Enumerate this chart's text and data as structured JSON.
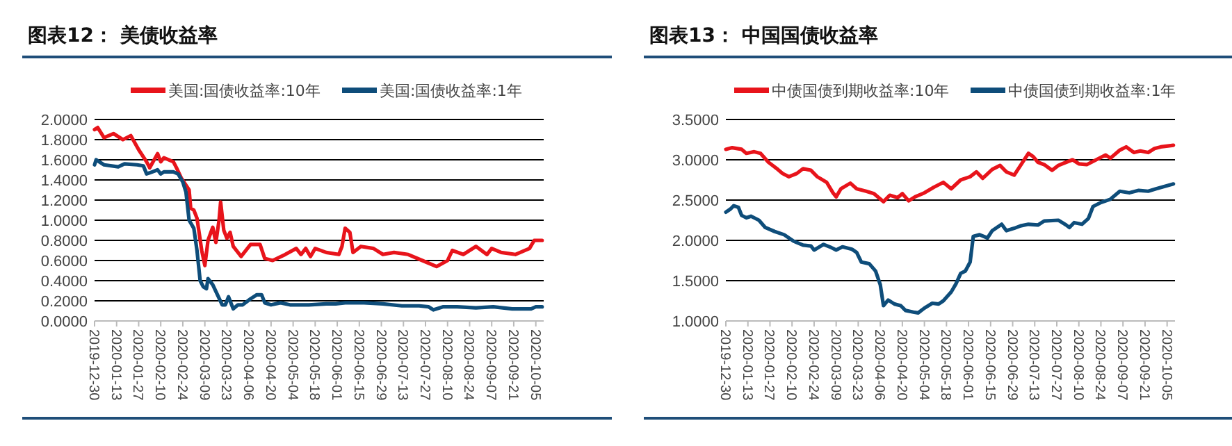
{
  "chart_data": [
    {
      "type": "line",
      "title": "图表12：  美债收益率",
      "legend": "top",
      "grid": "y",
      "xlim": [
        "2019-12-30",
        "2020-10-10"
      ],
      "xticks": [
        "2019-12-30",
        "2020-01-13",
        "2020-01-27",
        "2020-02-10",
        "2020-02-24",
        "2020-03-09",
        "2020-03-23",
        "2020-04-06",
        "2020-04-20",
        "2020-05-04",
        "2020-05-18",
        "2020-06-01",
        "2020-06-15",
        "2020-06-29",
        "2020-07-13",
        "2020-07-27",
        "2020-08-10",
        "2020-08-24",
        "2020-09-07",
        "2020-09-21",
        "2020-10-05"
      ],
      "ylim": [
        0,
        2
      ],
      "yticks": [
        {
          "value": 0,
          "label": "0.0000"
        },
        {
          "value": 0.2,
          "label": "0.2000"
        },
        {
          "value": 0.4,
          "label": "0.4000"
        },
        {
          "value": 0.6,
          "label": "0.6000"
        },
        {
          "value": 0.8,
          "label": "0.8000"
        },
        {
          "value": 1,
          "label": "1.0000"
        },
        {
          "value": 1.2,
          "label": "1.2000"
        },
        {
          "value": 1.4,
          "label": "1.4000"
        },
        {
          "value": 1.6,
          "label": "1.6000"
        },
        {
          "value": 1.8,
          "label": "1.8000"
        },
        {
          "value": 2,
          "label": "2.0000"
        }
      ],
      "series": [
        {
          "name": "美国:国债收益率:10年",
          "color": "#e8141b",
          "x": [
            "2019-12-30",
            "2020-01-01",
            "2020-01-05",
            "2020-01-11",
            "2020-01-17",
            "2020-01-22",
            "2020-01-27",
            "2020-02-01",
            "2020-02-03",
            "2020-02-08",
            "2020-02-10",
            "2020-02-12",
            "2020-02-18",
            "2020-02-20",
            "2020-02-23",
            "2020-02-28",
            "2020-02-29",
            "2020-03-02",
            "2020-03-04",
            "2020-03-07",
            "2020-03-09",
            "2020-03-11",
            "2020-03-14",
            "2020-03-16",
            "2020-03-18",
            "2020-03-19",
            "2020-03-21",
            "2020-03-23",
            "2020-03-25",
            "2020-03-27",
            "2020-04-01",
            "2020-04-07",
            "2020-04-13",
            "2020-04-16",
            "2020-04-21",
            "2020-04-29",
            "2020-05-06",
            "2020-05-09",
            "2020-05-12",
            "2020-05-15",
            "2020-05-18",
            "2020-05-25",
            "2020-06-02",
            "2020-06-04",
            "2020-06-06",
            "2020-06-09",
            "2020-06-11",
            "2020-06-16",
            "2020-06-24",
            "2020-06-30",
            "2020-07-07",
            "2020-07-16",
            "2020-07-25",
            "2020-08-03",
            "2020-08-10",
            "2020-08-13",
            "2020-08-20",
            "2020-08-28",
            "2020-09-04",
            "2020-09-07",
            "2020-09-13",
            "2020-09-22",
            "2020-10-01",
            "2020-10-04",
            "2020-10-09"
          ],
          "values": [
            1.9,
            1.92,
            1.82,
            1.86,
            1.8,
            1.84,
            1.7,
            1.58,
            1.52,
            1.66,
            1.58,
            1.62,
            1.58,
            1.52,
            1.42,
            1.3,
            1.12,
            1.1,
            1.02,
            0.7,
            0.55,
            0.8,
            0.93,
            0.78,
            1.0,
            1.18,
            0.9,
            0.82,
            0.88,
            0.74,
            0.64,
            0.76,
            0.76,
            0.62,
            0.6,
            0.66,
            0.72,
            0.66,
            0.72,
            0.64,
            0.72,
            0.68,
            0.66,
            0.74,
            0.92,
            0.88,
            0.68,
            0.74,
            0.72,
            0.66,
            0.68,
            0.66,
            0.6,
            0.54,
            0.6,
            0.7,
            0.66,
            0.74,
            0.66,
            0.72,
            0.68,
            0.66,
            0.72,
            0.8,
            0.8
          ]
        },
        {
          "name": "美国:国债收益率:1年",
          "color": "#0e4d7a",
          "x": [
            "2019-12-30",
            "2019-12-31",
            "2020-01-05",
            "2020-01-14",
            "2020-01-18",
            "2020-01-26",
            "2020-01-30",
            "2020-02-01",
            "2020-02-03",
            "2020-02-08",
            "2020-02-10",
            "2020-02-12",
            "2020-02-18",
            "2020-02-21",
            "2020-02-24",
            "2020-02-26",
            "2020-02-28",
            "2020-03-02",
            "2020-03-04",
            "2020-03-06",
            "2020-03-08",
            "2020-03-10",
            "2020-03-11",
            "2020-03-14",
            "2020-03-17",
            "2020-03-20",
            "2020-03-22",
            "2020-03-24",
            "2020-03-27",
            "2020-03-30",
            "2020-04-02",
            "2020-04-07",
            "2020-04-11",
            "2020-04-14",
            "2020-04-16",
            "2020-04-20",
            "2020-04-26",
            "2020-05-02",
            "2020-05-14",
            "2020-05-25",
            "2020-05-31",
            "2020-06-06",
            "2020-06-18",
            "2020-06-30",
            "2020-07-12",
            "2020-07-23",
            "2020-07-29",
            "2020-08-01",
            "2020-08-07",
            "2020-08-16",
            "2020-08-28",
            "2020-09-08",
            "2020-09-20",
            "2020-10-02",
            "2020-10-05",
            "2020-10-09"
          ],
          "values": [
            1.55,
            1.6,
            1.55,
            1.53,
            1.56,
            1.55,
            1.54,
            1.46,
            1.47,
            1.5,
            1.46,
            1.48,
            1.48,
            1.46,
            1.38,
            1.28,
            1.0,
            0.92,
            0.7,
            0.4,
            0.34,
            0.32,
            0.42,
            0.36,
            0.26,
            0.16,
            0.16,
            0.24,
            0.12,
            0.16,
            0.16,
            0.22,
            0.26,
            0.26,
            0.18,
            0.16,
            0.18,
            0.16,
            0.16,
            0.17,
            0.17,
            0.18,
            0.18,
            0.17,
            0.15,
            0.15,
            0.14,
            0.11,
            0.14,
            0.14,
            0.13,
            0.14,
            0.12,
            0.12,
            0.14,
            0.14
          ]
        }
      ]
    },
    {
      "type": "line",
      "title": "图表13：  中国国债收益率",
      "legend": "top",
      "grid": "y",
      "xlim": [
        "2019-12-30",
        "2020-10-10"
      ],
      "xticks": [
        "2019-12-30",
        "2020-01-13",
        "2020-01-27",
        "2020-02-10",
        "2020-02-24",
        "2020-03-09",
        "2020-03-23",
        "2020-04-06",
        "2020-04-20",
        "2020-05-04",
        "2020-05-18",
        "2020-06-01",
        "2020-06-15",
        "2020-06-29",
        "2020-07-13",
        "2020-07-27",
        "2020-08-10",
        "2020-08-24",
        "2020-09-07",
        "2020-09-21",
        "2020-10-05"
      ],
      "ylim": [
        1,
        3.5
      ],
      "yticks": [
        {
          "value": 1,
          "label": "1.0000"
        },
        {
          "value": 1.5,
          "label": "1.5000"
        },
        {
          "value": 2,
          "label": "2.0000"
        },
        {
          "value": 2.5,
          "label": "2.5000"
        },
        {
          "value": 3,
          "label": "3.0000"
        },
        {
          "value": 3.5,
          "label": "3.5000"
        }
      ],
      "series": [
        {
          "name": "中债国债到期收益率:10年",
          "color": "#e8141b",
          "x": [
            "2019-12-30",
            "2020-01-03",
            "2020-01-09",
            "2020-01-12",
            "2020-01-17",
            "2020-01-21",
            "2020-01-26",
            "2020-02-01",
            "2020-02-04",
            "2020-02-08",
            "2020-02-13",
            "2020-02-17",
            "2020-02-22",
            "2020-02-26",
            "2020-03-03",
            "2020-03-07",
            "2020-03-09",
            "2020-03-12",
            "2020-03-18",
            "2020-03-22",
            "2020-03-28",
            "2020-04-02",
            "2020-04-08",
            "2020-04-12",
            "2020-04-17",
            "2020-04-20",
            "2020-04-24",
            "2020-04-28",
            "2020-05-04",
            "2020-05-10",
            "2020-05-16",
            "2020-05-21",
            "2020-05-27",
            "2020-06-02",
            "2020-06-06",
            "2020-06-10",
            "2020-06-16",
            "2020-06-21",
            "2020-06-25",
            "2020-06-30",
            "2020-07-04",
            "2020-07-09",
            "2020-07-12",
            "2020-07-15",
            "2020-07-19",
            "2020-07-24",
            "2020-07-28",
            "2020-08-02",
            "2020-08-06",
            "2020-08-10",
            "2020-08-15",
            "2020-08-21",
            "2020-08-27",
            "2020-08-30",
            "2020-09-05",
            "2020-09-09",
            "2020-09-14",
            "2020-09-18",
            "2020-09-23",
            "2020-09-27",
            "2020-10-01",
            "2020-10-09"
          ],
          "values": [
            3.13,
            3.15,
            3.13,
            3.08,
            3.1,
            3.08,
            2.97,
            2.88,
            2.83,
            2.79,
            2.83,
            2.89,
            2.87,
            2.79,
            2.72,
            2.59,
            2.54,
            2.64,
            2.71,
            2.64,
            2.61,
            2.58,
            2.48,
            2.56,
            2.53,
            2.58,
            2.49,
            2.54,
            2.59,
            2.66,
            2.72,
            2.64,
            2.75,
            2.79,
            2.85,
            2.77,
            2.88,
            2.93,
            2.85,
            2.81,
            2.93,
            3.08,
            3.04,
            2.97,
            2.94,
            2.87,
            2.93,
            2.97,
            3.0,
            2.95,
            2.94,
            3.0,
            3.06,
            3.02,
            3.12,
            3.16,
            3.09,
            3.11,
            3.09,
            3.14,
            3.16,
            3.18
          ]
        },
        {
          "name": "中债国债到期收益率:1年",
          "color": "#0e4d7a",
          "x": [
            "2019-12-30",
            "2020-01-02",
            "2020-01-04",
            "2020-01-07",
            "2020-01-09",
            "2020-01-12",
            "2020-01-15",
            "2020-01-20",
            "2020-01-24",
            "2020-01-30",
            "2020-02-05",
            "2020-02-11",
            "2020-02-17",
            "2020-02-22",
            "2020-02-24",
            "2020-03-01",
            "2020-03-06",
            "2020-03-09",
            "2020-03-13",
            "2020-03-19",
            "2020-03-22",
            "2020-03-25",
            "2020-03-30",
            "2020-04-03",
            "2020-04-06",
            "2020-04-08",
            "2020-04-11",
            "2020-04-15",
            "2020-04-19",
            "2020-04-22",
            "2020-04-27",
            "2020-04-30",
            "2020-05-04",
            "2020-05-09",
            "2020-05-13",
            "2020-05-16",
            "2020-05-21",
            "2020-05-24",
            "2020-05-27",
            "2020-05-30",
            "2020-06-02",
            "2020-06-04",
            "2020-06-08",
            "2020-06-13",
            "2020-06-16",
            "2020-06-22",
            "2020-06-25",
            "2020-06-30",
            "2020-07-04",
            "2020-07-09",
            "2020-07-15",
            "2020-07-19",
            "2020-07-28",
            "2020-08-02",
            "2020-08-04",
            "2020-08-07",
            "2020-08-12",
            "2020-08-16",
            "2020-08-19",
            "2020-08-24",
            "2020-08-30",
            "2020-09-05",
            "2020-09-11",
            "2020-09-17",
            "2020-09-23",
            "2020-09-28",
            "2020-10-09"
          ],
          "values": [
            2.35,
            2.39,
            2.43,
            2.41,
            2.31,
            2.28,
            2.3,
            2.25,
            2.16,
            2.11,
            2.07,
            1.99,
            1.94,
            1.93,
            1.88,
            1.95,
            1.91,
            1.88,
            1.92,
            1.89,
            1.85,
            1.73,
            1.71,
            1.62,
            1.45,
            1.19,
            1.26,
            1.21,
            1.19,
            1.13,
            1.11,
            1.1,
            1.16,
            1.22,
            1.21,
            1.25,
            1.36,
            1.46,
            1.59,
            1.62,
            1.73,
            2.05,
            2.07,
            2.03,
            2.12,
            2.2,
            2.12,
            2.15,
            2.18,
            2.2,
            2.19,
            2.24,
            2.25,
            2.19,
            2.16,
            2.22,
            2.2,
            2.27,
            2.42,
            2.47,
            2.51,
            2.61,
            2.59,
            2.62,
            2.61,
            2.64,
            2.7
          ]
        }
      ]
    }
  ]
}
